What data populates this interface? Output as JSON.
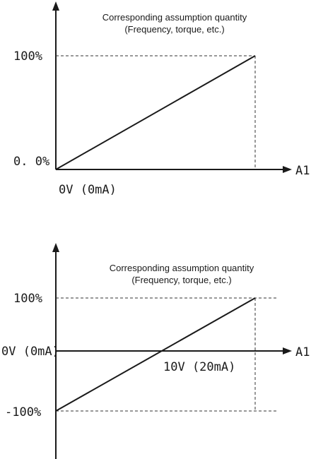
{
  "diagram1": {
    "note_line1": "Corresponding assumption quantity",
    "note_line2": "(Frequency, torque, etc.)",
    "y_top_label": "100%",
    "y_bottom_label": "0. 0%",
    "x_origin_label": "0V (0mA)",
    "x_axis_name": "A1"
  },
  "diagram2": {
    "note_line1": "Corresponding assumption quantity",
    "note_line2": "(Frequency, torque, etc.)",
    "y_top_label": "100%",
    "y_middle_label": "0V (0mA)",
    "y_bottom_label": "-100%",
    "x_point_label": "10V (20mA)",
    "x_axis_name": "A1"
  }
}
